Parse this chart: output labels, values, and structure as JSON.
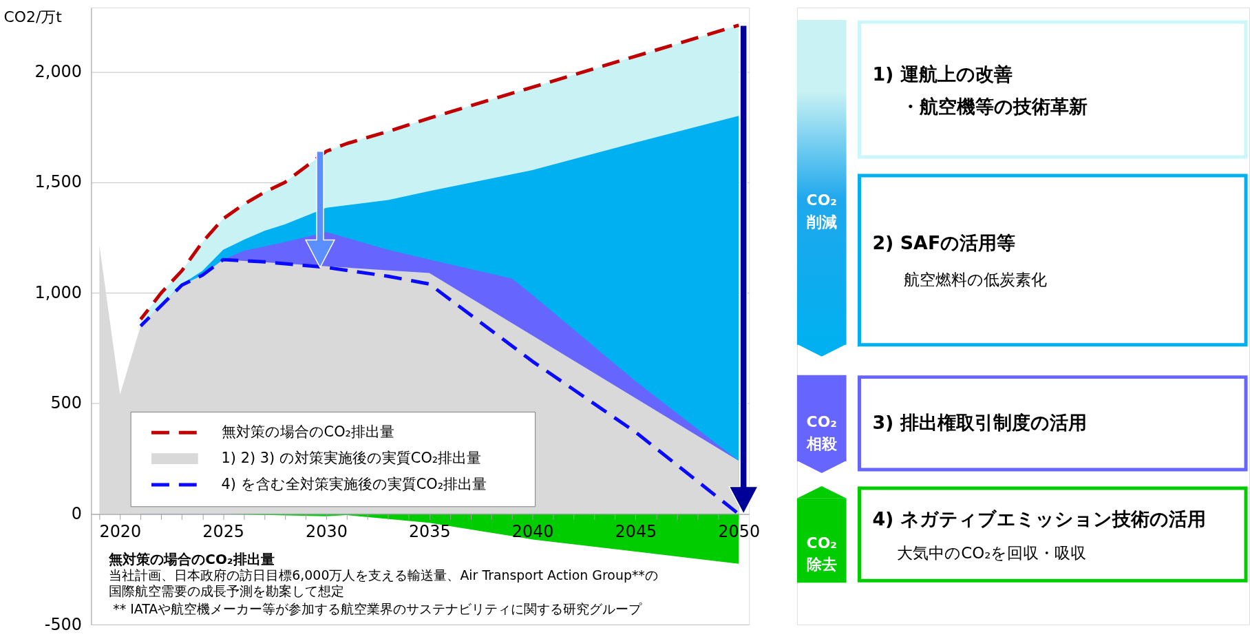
{
  "chart_data": [
    {
      "type": "area",
      "ylabel": "CO2/万t",
      "xlim": [
        2018.6,
        2050.5
      ],
      "ylim": [
        -500,
        2290
      ],
      "xticks": [
        {
          "value": 2019,
          "label": null
        },
        2020,
        {
          "value": 2021,
          "label": null
        },
        {
          "value": 2022,
          "label": null
        },
        {
          "value": 2023,
          "label": null
        },
        {
          "value": 2024,
          "label": null
        },
        2025,
        {
          "value": 2026,
          "label": null
        },
        {
          "value": 2027,
          "label": null
        },
        {
          "value": 2028,
          "label": null
        },
        {
          "value": 2029,
          "label": null
        },
        2030,
        {
          "value": 2031,
          "label": null
        },
        {
          "value": 2032,
          "label": null
        },
        {
          "value": 2033,
          "label": null
        },
        {
          "value": 2034,
          "label": null
        },
        2035,
        {
          "value": 2036,
          "label": null
        },
        {
          "value": 2037,
          "label": null
        },
        {
          "value": 2038,
          "label": null
        },
        {
          "value": 2039,
          "label": null
        },
        2040,
        {
          "value": 2041,
          "label": null
        },
        {
          "value": 2042,
          "label": null
        },
        {
          "value": 2043,
          "label": null
        },
        {
          "value": 2044,
          "label": null
        },
        2045,
        {
          "value": 2046,
          "label": null
        },
        {
          "value": 2047,
          "label": null
        },
        {
          "value": 2048,
          "label": null
        },
        {
          "value": 2049,
          "label": null
        },
        2050
      ],
      "yticks": [
        -500,
        0,
        500,
        {
          "value": 1000,
          "label": "1,000"
        },
        {
          "value": 1500,
          "label": "1,500"
        },
        {
          "value": 2000,
          "label": "2,000"
        }
      ],
      "grid": "y",
      "legend": "bottom left",
      "series": [
        {
          "type": "area",
          "color": "#c8f2f4",
          "x": [
            2021,
            2022,
            2023,
            2024,
            2025,
            2026,
            2027,
            2028,
            2029,
            2030,
            2031,
            2033,
            2035,
            2040,
            2045,
            2050
          ],
          "values": [
            880,
            1000,
            1100,
            1230,
            1335,
            1400,
            1455,
            1500,
            1570,
            1640,
            1675,
            1730,
            1790,
            1930,
            2070,
            2210
          ]
        },
        {
          "type": "area",
          "color": "#00b0f0",
          "x": [
            2021,
            2023,
            2024,
            2025,
            2026,
            2027,
            2028,
            2030,
            2033,
            2035,
            2040,
            2045,
            2050
          ],
          "values": [
            850,
            1040,
            1100,
            1195,
            1240,
            1280,
            1310,
            1385,
            1420,
            1460,
            1555,
            1680,
            1800
          ]
        },
        {
          "type": "area",
          "color": "#6666ff",
          "x": [
            2021,
            2023,
            2024,
            2025,
            2026,
            2028,
            2030,
            2033,
            2035,
            2039,
            2040,
            2045,
            2050
          ],
          "values": [
            850,
            1035,
            1080,
            1150,
            1190,
            1230,
            1275,
            1195,
            1150,
            1065,
            990,
            600,
            240
          ]
        },
        {
          "type": "line",
          "name": "無対策の場合のCO₂排出量",
          "color": "#c00000",
          "line_style": "dashed",
          "x": [
            2021,
            2022,
            2023,
            2024,
            2025,
            2026,
            2027,
            2028,
            2029,
            2030,
            2031,
            2033,
            2035,
            2040,
            2045,
            2050
          ],
          "values": [
            880,
            1000,
            1100,
            1230,
            1335,
            1400,
            1455,
            1500,
            1570,
            1640,
            1675,
            1730,
            1790,
            1930,
            2070,
            2210
          ]
        },
        {
          "type": "area",
          "name": "1) 2) 3) の対策実施後の実質CO₂排出量",
          "color": "#d9d9d9",
          "x": [
            2019,
            2020,
            2021,
            2022,
            2023,
            2024,
            2025,
            2035,
            2050
          ],
          "values": [
            1215,
            540,
            850,
            950,
            1035,
            1080,
            1150,
            1090,
            240
          ]
        },
        {
          "type": "area",
          "color": "#00cc00",
          "x": [
            2025,
            2030,
            2031,
            2035,
            2040,
            2045,
            2050
          ],
          "values": [
            0,
            -10,
            -5,
            -40,
            -115,
            -170,
            -225
          ]
        },
        {
          "type": "line",
          "name": "4) を含む全対策実施後の実質CO₂排出量",
          "color": "#0a0aff",
          "line_style": "dashed",
          "x": [
            2021,
            2023,
            2024,
            2025,
            2027,
            2030,
            2033,
            2035,
            2040,
            2045,
            2050
          ],
          "values": [
            850,
            1035,
            1080,
            1150,
            1140,
            1115,
            1075,
            1040,
            690,
            370,
            0
          ]
        }
      ],
      "annotations": [
        "無対策の場合のCO₂排出量",
        "当社計画、日本政府の訪日目標6,000万人を支える輸送量、Air Transport Action Group**の",
        "国際航空需要の成長予測を勘案して想定",
        "** IATAや航空機メーカー等が参加する航空業界のサステナビリティに関する研究グループ"
      ]
    },
    {
      "type": "other",
      "annotations": [
        "CO₂\n削減",
        "1) 運航上の改善",
        "・航空機等の技術革新",
        "2) SAFの活用等",
        "航空燃料の低炭素化",
        "CO₂\n相殺",
        "3) 排出権取引制度の活用",
        "CO₂\n除去",
        "4) ネガティブエミッション技術の活用",
        "大気中のCO₂を回収・吸収"
      ]
    }
  ]
}
